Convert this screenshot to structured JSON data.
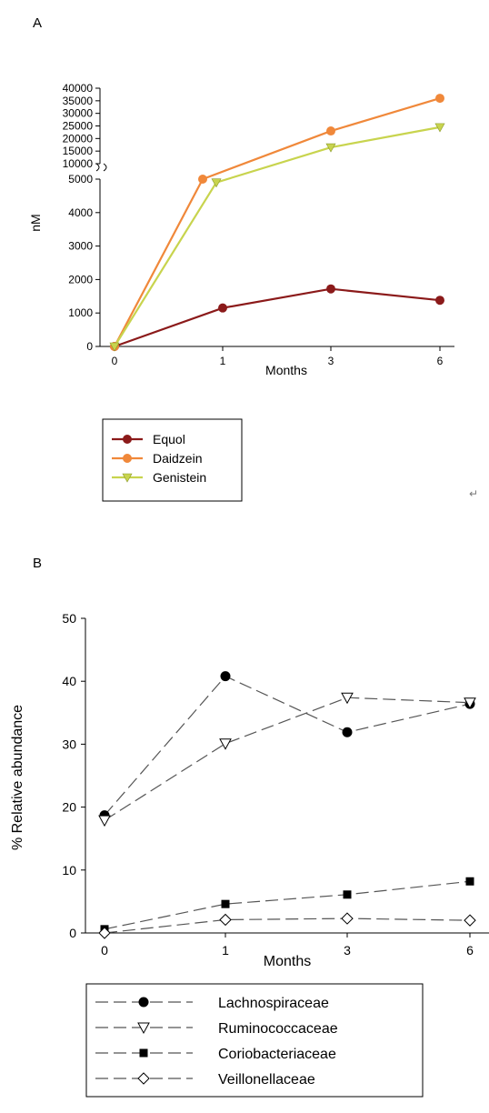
{
  "panels": {
    "a": {
      "letter": "A"
    },
    "b": {
      "letter": "B"
    },
    "stray_mark": "↵"
  },
  "chart_data": [
    {
      "type": "line",
      "panel": "A",
      "title": "",
      "xlabel": "Months",
      "ylabel": "nM",
      "x": [
        0,
        1,
        3,
        6
      ],
      "x_ticks": [
        "0",
        "1",
        "3",
        "6"
      ],
      "y_axis": "broken",
      "y_lower_ticks": [
        0,
        1000,
        2000,
        3000,
        4000,
        5000
      ],
      "y_upper_ticks": [
        10000,
        15000,
        20000,
        25000,
        30000,
        35000,
        40000
      ],
      "ylim": [
        0,
        40000
      ],
      "legend_position": "bottom-left",
      "grid": false,
      "series": [
        {
          "name": "Equol",
          "values": [
            0,
            1150,
            1720,
            1380
          ],
          "color": "#8b1a1a",
          "marker": "circle",
          "line": "solid"
        },
        {
          "name": "Daidzein",
          "values": [
            0,
            5000,
            23000,
            36000
          ],
          "color": "#f0883a",
          "marker": "circle",
          "line": "solid"
        },
        {
          "name": "Genistein",
          "values": [
            0,
            4900,
            16500,
            24500
          ],
          "color": "#c8d44e",
          "marker": "triangle-down",
          "line": "solid"
        }
      ]
    },
    {
      "type": "line",
      "panel": "B",
      "title": "",
      "xlabel": "Months",
      "ylabel": "% Relative abundance",
      "x": [
        0,
        1,
        3,
        6
      ],
      "x_ticks": [
        "0",
        "1",
        "3",
        "6"
      ],
      "y_ticks": [
        0,
        10,
        20,
        30,
        40,
        50
      ],
      "ylim": [
        0,
        50
      ],
      "legend_position": "bottom",
      "grid": false,
      "series": [
        {
          "name": "Lachnospiraceae",
          "values": [
            18.7,
            40.8,
            31.9,
            36.4
          ],
          "color": "#000000",
          "marker": "circle-filled",
          "line": "dashed"
        },
        {
          "name": "Ruminococcaceae",
          "values": [
            17.9,
            30.1,
            37.4,
            36.6
          ],
          "color": "#000000",
          "marker": "triangle-down-open",
          "line": "dashed"
        },
        {
          "name": "Coriobacteriaceae",
          "values": [
            0.6,
            4.6,
            6.1,
            8.2
          ],
          "color": "#000000",
          "marker": "square-filled",
          "line": "dashed"
        },
        {
          "name": "Veillonellaceae",
          "values": [
            0,
            2.1,
            2.3,
            2.0
          ],
          "color": "#000000",
          "marker": "diamond-open",
          "line": "dashed"
        }
      ]
    }
  ]
}
